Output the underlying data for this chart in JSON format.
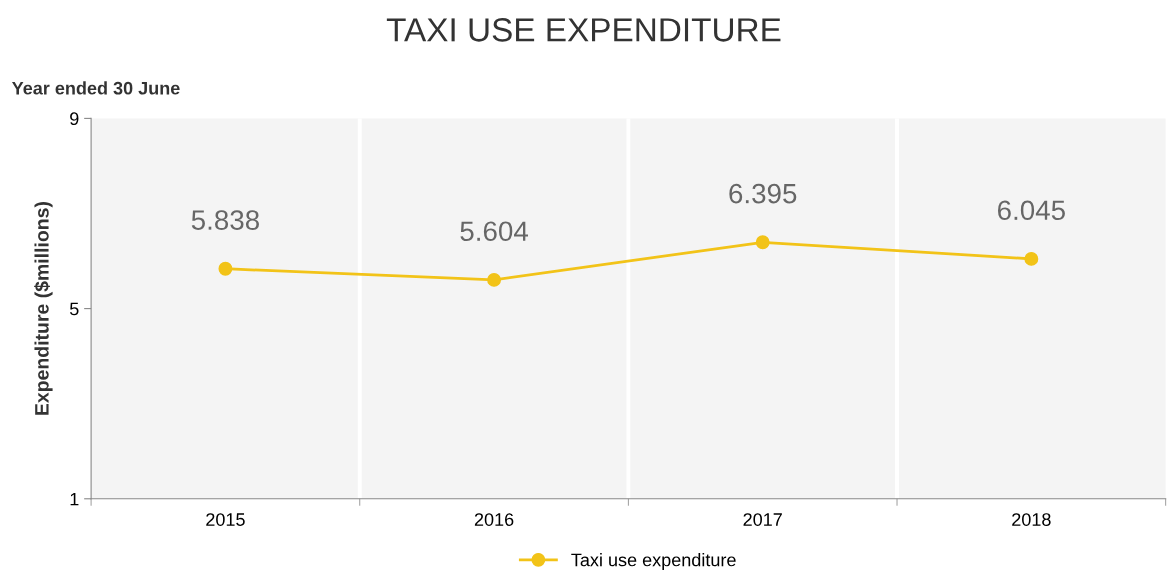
{
  "chart_data": {
    "type": "line",
    "title": "TAXI USE EXPENDITURE",
    "ylabel": "Expenditure ($millions)",
    "annotations": [
      "Year ended 30 June"
    ],
    "categories": [
      "2015",
      "2016",
      "2017",
      "2018"
    ],
    "series": [
      {
        "name": "Taxi use expenditure",
        "color": "#f2c318",
        "values": [
          5.838,
          5.604,
          6.395,
          6.045
        ]
      }
    ],
    "ylim": [
      1,
      9
    ],
    "yticks": [
      1,
      5,
      9
    ],
    "data_labels": true,
    "legend": "bottom",
    "marker": "circle",
    "line_style": "solid",
    "grid": false
  }
}
